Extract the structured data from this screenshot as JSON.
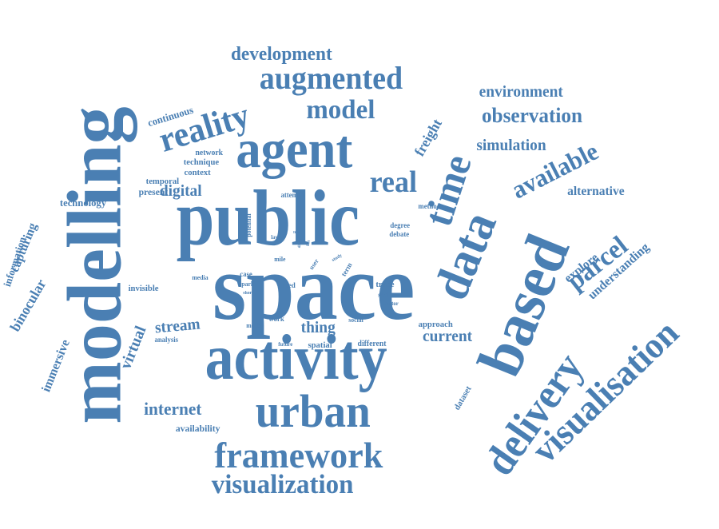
{
  "cloud": {
    "color": "#4a7fb3",
    "words": [
      {
        "text": "modelling"
      },
      {
        "text": "space"
      },
      {
        "text": "public"
      },
      {
        "text": "activity"
      },
      {
        "text": "based"
      },
      {
        "text": "agent"
      },
      {
        "text": "data"
      },
      {
        "text": "time"
      },
      {
        "text": "urban"
      },
      {
        "text": "delivery"
      },
      {
        "text": "visualisation"
      },
      {
        "text": "framework"
      },
      {
        "text": "visualization"
      },
      {
        "text": "augmented"
      },
      {
        "text": "reality"
      },
      {
        "text": "model"
      },
      {
        "text": "real"
      },
      {
        "text": "available"
      },
      {
        "text": "parcel"
      },
      {
        "text": "development"
      },
      {
        "text": "environment"
      },
      {
        "text": "observation"
      },
      {
        "text": "simulation"
      },
      {
        "text": "freight"
      },
      {
        "text": "internet"
      },
      {
        "text": "digital"
      },
      {
        "text": "stream"
      },
      {
        "text": "current"
      },
      {
        "text": "thing"
      },
      {
        "text": "virtual"
      },
      {
        "text": "alternative"
      },
      {
        "text": "explore"
      },
      {
        "text": "understanding"
      },
      {
        "text": "binocular"
      },
      {
        "text": "immersive"
      },
      {
        "text": "capturing"
      },
      {
        "text": "information"
      },
      {
        "text": "technology"
      },
      {
        "text": "continuous"
      },
      {
        "text": "network"
      },
      {
        "text": "technique"
      },
      {
        "text": "context"
      },
      {
        "text": "temporal"
      },
      {
        "text": "present"
      },
      {
        "text": "attempt"
      },
      {
        "text": "potential"
      },
      {
        "text": "method"
      },
      {
        "text": "degree"
      },
      {
        "text": "debate"
      },
      {
        "text": "layer"
      },
      {
        "text": "fine"
      },
      {
        "text": "direct"
      },
      {
        "text": "last"
      },
      {
        "text": "user"
      },
      {
        "text": "term"
      },
      {
        "text": "study"
      },
      {
        "text": "mile"
      },
      {
        "text": "media"
      },
      {
        "text": "case"
      },
      {
        "text": "park"
      },
      {
        "text": "short"
      },
      {
        "text": "feed"
      },
      {
        "text": "trace"
      },
      {
        "text": "scale"
      },
      {
        "text": "visitor"
      },
      {
        "text": "invisible"
      },
      {
        "text": "work"
      },
      {
        "text": "mode"
      },
      {
        "text": "social"
      },
      {
        "text": "approach"
      },
      {
        "text": "future"
      },
      {
        "text": "spatial"
      },
      {
        "text": "different"
      },
      {
        "text": "analysis"
      },
      {
        "text": "availability"
      },
      {
        "text": "dataset"
      }
    ]
  }
}
